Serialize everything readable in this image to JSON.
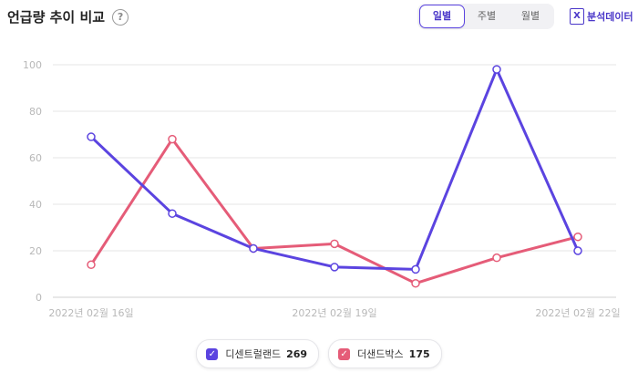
{
  "header": {
    "title": "언급량 추이 비교",
    "help_glyph": "?",
    "tabs": [
      {
        "label": "일별",
        "active": true
      },
      {
        "label": "주별",
        "active": false
      },
      {
        "label": "월별",
        "active": false
      }
    ],
    "analysis_label": "분석데이터",
    "analysis_icon_glyph": "X"
  },
  "colors": {
    "series1": "#5b44e0",
    "series2": "#e55c78",
    "grid": "#e6e6e6",
    "tick": "#b8b8b8"
  },
  "chart_data": {
    "type": "line",
    "x_points": 7,
    "x_tick_labels": [
      {
        "index": 0,
        "label": "2022년 02월 16일"
      },
      {
        "index": 3,
        "label": "2022년 02월 19일"
      },
      {
        "index": 6,
        "label": "2022년 02월 22일"
      }
    ],
    "ylim": [
      0,
      100
    ],
    "yticks": [
      0,
      20,
      40,
      60,
      80,
      100
    ],
    "grid": true,
    "legend_position": "bottom-center",
    "series": [
      {
        "name": "디센트럴랜드",
        "count": "269",
        "values": [
          69,
          36,
          21,
          13,
          12,
          98,
          20
        ]
      },
      {
        "name": "더샌드박스",
        "count": "175",
        "values": [
          14,
          68,
          21,
          23,
          6,
          17,
          26
        ]
      }
    ]
  },
  "legend": {
    "items": [
      {
        "name": "디센트럴랜드",
        "count": "269"
      },
      {
        "name": "더샌드박스",
        "count": "175"
      }
    ],
    "check_glyph": "✓"
  }
}
